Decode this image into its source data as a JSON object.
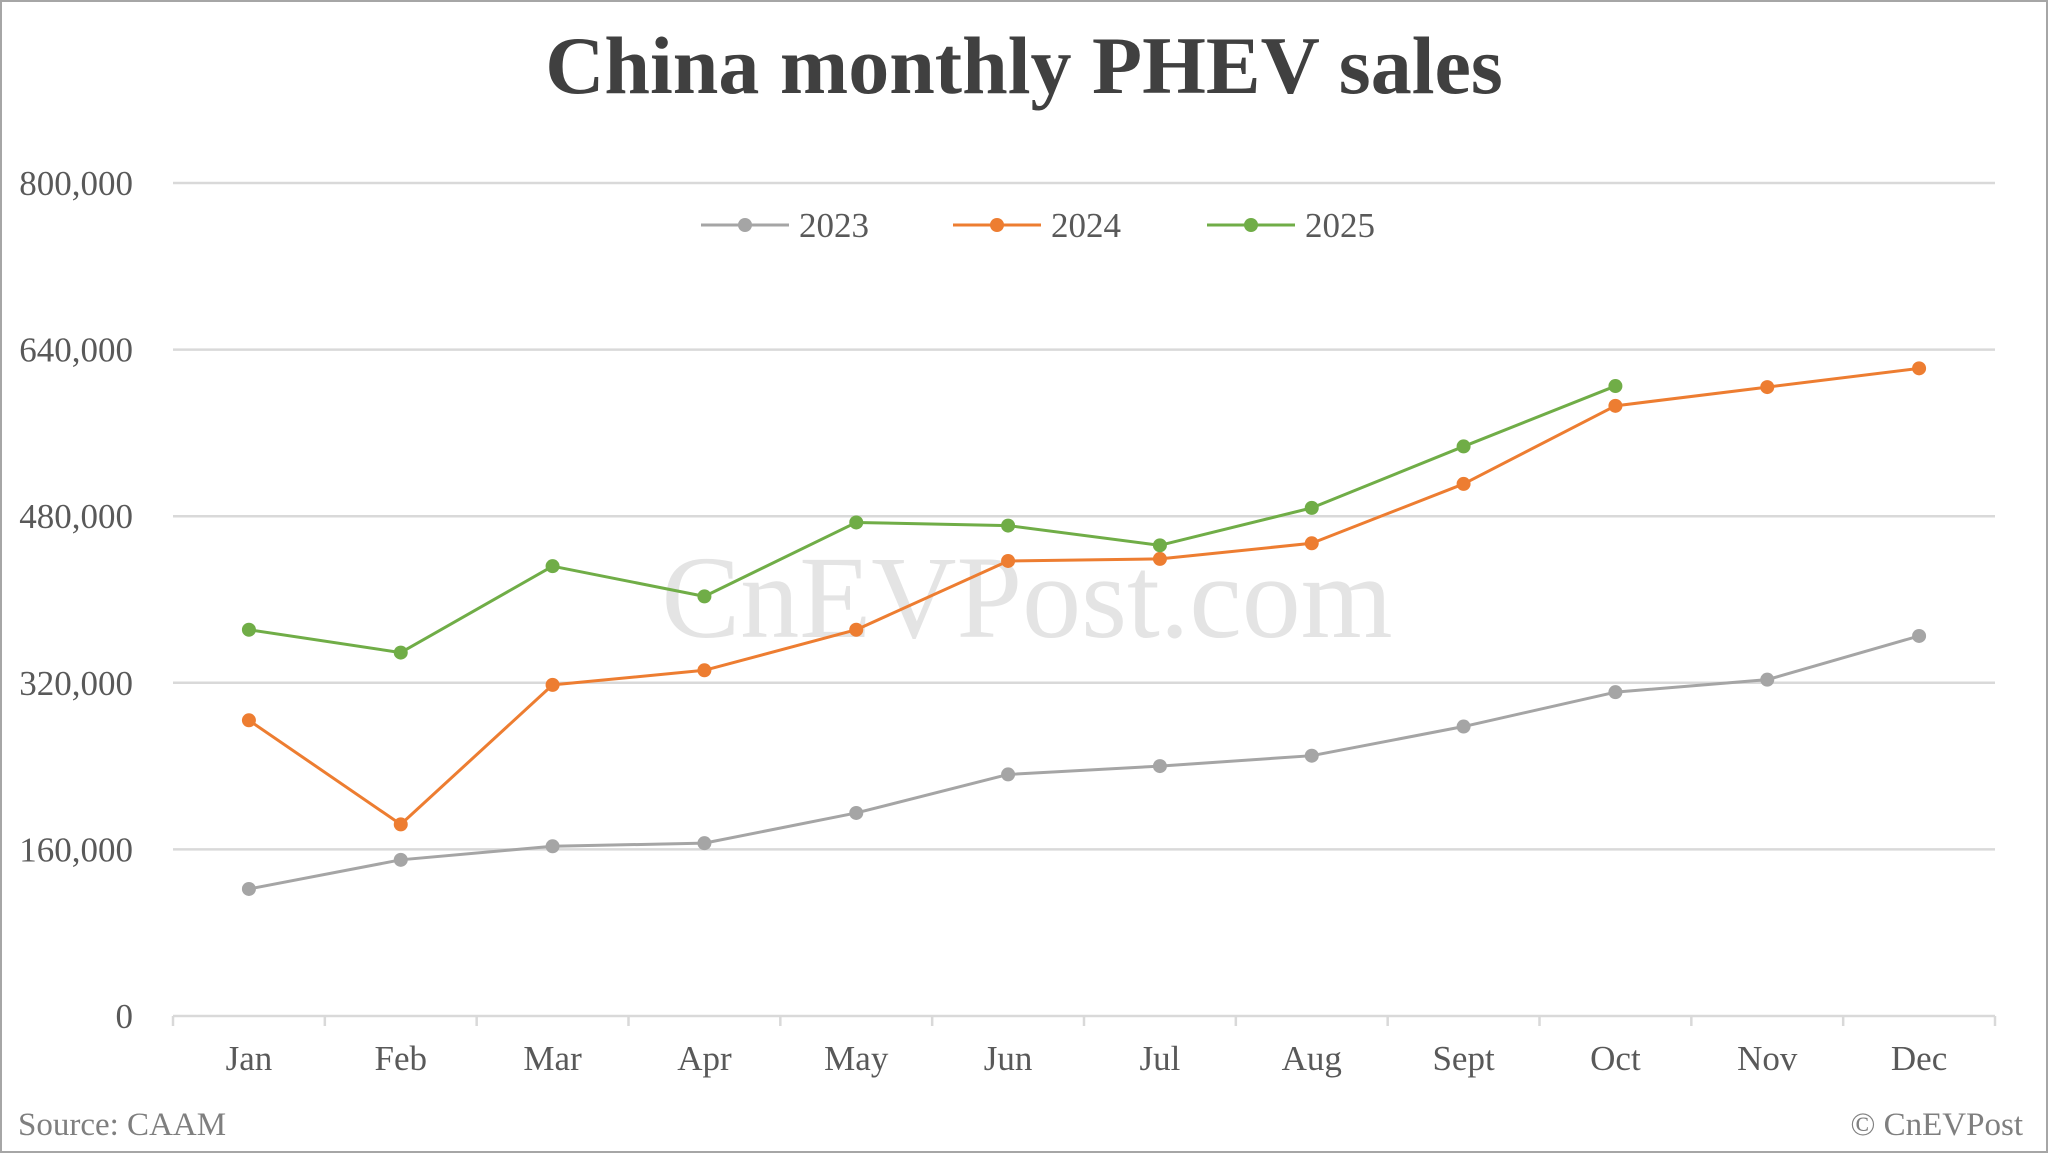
{
  "title": "China monthly PHEV sales",
  "source": "Source: CAAM",
  "copyright": "© CnEVPost",
  "watermark": "CnEVPost.com",
  "colors": {
    "2023": "#a5a5a5",
    "2024": "#ed7d31",
    "2025": "#70ad47",
    "grid": "#d9d9d9",
    "title": "#404040",
    "text": "#595959"
  },
  "y_axis": {
    "ticks": [
      0,
      160000,
      320000,
      480000,
      640000,
      800000
    ],
    "tick_labels": [
      "0",
      "160,000",
      "320,000",
      "480,000",
      "640,000",
      "800,000"
    ]
  },
  "legend": [
    {
      "label": "2023",
      "color": "#a5a5a5"
    },
    {
      "label": "2024",
      "color": "#ed7d31"
    },
    {
      "label": "2025",
      "color": "#70ad47"
    }
  ],
  "chart_data": {
    "type": "line",
    "title": "China monthly PHEV sales",
    "xlabel": "",
    "ylabel": "",
    "categories": [
      "Jan",
      "Feb",
      "Mar",
      "Apr",
      "May",
      "Jun",
      "Jul",
      "Aug",
      "Sept",
      "Oct",
      "Nov",
      "Dec"
    ],
    "series": [
      {
        "name": "2023",
        "color": "#a5a5a5",
        "values": [
          122000,
          150000,
          163000,
          166000,
          195000,
          232000,
          240000,
          250000,
          278000,
          311000,
          323000,
          365000
        ]
      },
      {
        "name": "2024",
        "color": "#ed7d31",
        "values": [
          284000,
          184000,
          318000,
          332000,
          371000,
          437000,
          439000,
          454000,
          511000,
          586000,
          604000,
          622000
        ]
      },
      {
        "name": "2025",
        "color": "#70ad47",
        "values": [
          371000,
          349000,
          432000,
          403000,
          474000,
          471000,
          452000,
          488000,
          547000,
          605000,
          null,
          null
        ]
      }
    ],
    "ylim": [
      0,
      800000
    ],
    "yticks": [
      0,
      160000,
      320000,
      480000,
      640000,
      800000
    ],
    "grid": true,
    "legend_position": "top",
    "markers": true,
    "annotations": [
      "CnEVPost.com (watermark)",
      "Source: CAAM",
      "© CnEVPost"
    ]
  }
}
